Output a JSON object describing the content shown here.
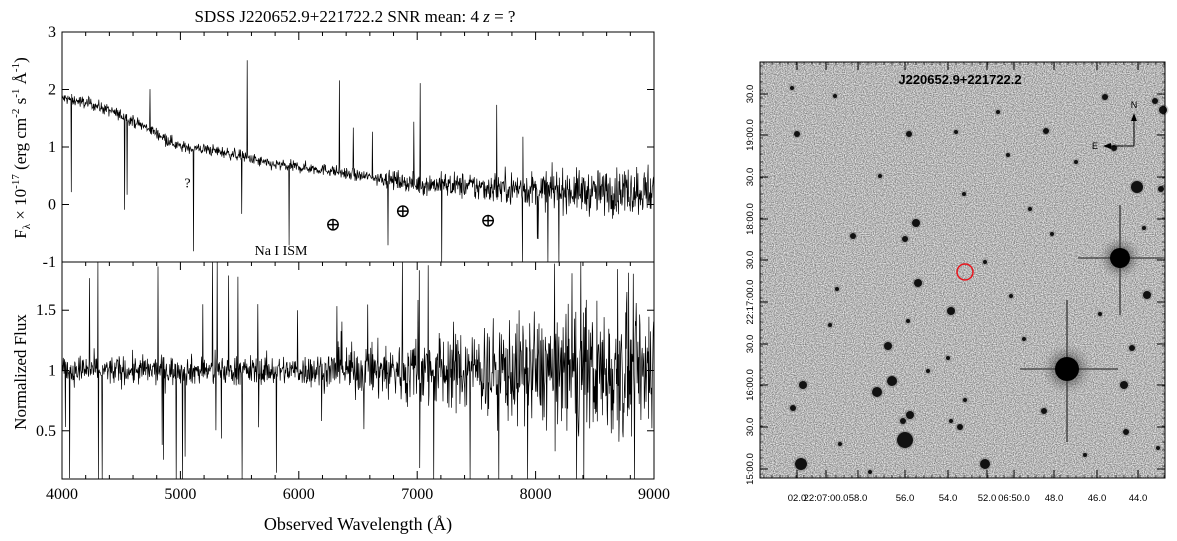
{
  "chart_data": [
    {
      "type": "line",
      "panel": "flux",
      "title": "SDSS J220652.9+221722.2 SNR mean:  4  z = ?",
      "title_parts": {
        "object": "SDSS J220652.9+221722.2 SNR mean:  4  ",
        "z": "z",
        "z_value": " = ?"
      },
      "xlabel": "",
      "ylabel": "Fλ × 10^-17 (erg cm^-2 s^-1 Å^-1)",
      "ylabel_parts": {
        "F": "F",
        "sub": "λ",
        "times": " × 10",
        "exp": "-17",
        "unit1": " (erg cm",
        "exp2": "-2",
        "unit2": " s",
        "exp3": "-1",
        "unit3": " Å",
        "exp4": "-1",
        "close": ")"
      },
      "xlim": [
        4000,
        9000
      ],
      "ylim": [
        -1,
        3
      ],
      "y_ticks": [
        "-1",
        "0",
        "1",
        "2",
        "3"
      ],
      "annotations": [
        {
          "text": "?",
          "x": 5060,
          "y": 0.3
        },
        {
          "text": "Na I ISM",
          "x": 5850,
          "y": -0.88
        },
        {
          "text": "⊕",
          "x": 6290,
          "y": -0.45
        },
        {
          "text": "⊕",
          "x": 6880,
          "y": -0.22
        },
        {
          "text": "⊕",
          "x": 7600,
          "y": -0.38
        }
      ],
      "x": [
        4000,
        4250,
        4500,
        4750,
        5000,
        5250,
        5500,
        5750,
        6000,
        6250,
        6500,
        6750,
        7000,
        7250,
        7500,
        7750,
        8000,
        8250,
        8500,
        8750,
        9000
      ],
      "values": [
        1.85,
        1.75,
        1.55,
        1.3,
        1.0,
        0.95,
        0.85,
        0.7,
        0.65,
        0.6,
        0.5,
        0.45,
        0.35,
        0.35,
        0.3,
        0.3,
        0.25,
        0.25,
        0.2,
        0.25,
        0.25
      ]
    },
    {
      "type": "line",
      "panel": "normalized",
      "xlabel": "Observed Wavelength (Å)",
      "ylabel": "Normalized Flux",
      "xlim": [
        4000,
        9000
      ],
      "ylim": [
        0.1,
        1.9
      ],
      "x_ticks": [
        "4000",
        "5000",
        "6000",
        "7000",
        "8000",
        "9000"
      ],
      "y_ticks": [
        "0.5",
        "1",
        "1.5"
      ],
      "x": [
        4000,
        4500,
        5000,
        5500,
        6000,
        6500,
        7000,
        7500,
        8000,
        8500,
        9000
      ],
      "values": [
        1.0,
        1.0,
        1.0,
        1.0,
        1.0,
        1.0,
        1.0,
        1.0,
        1.0,
        1.0,
        1.0
      ]
    }
  ],
  "finder": {
    "object_label": "J220652.9+221722.2",
    "compass": {
      "north": "N",
      "east": "E"
    },
    "ra_ticks": [
      "02.0",
      "22:07:00.0",
      "58.0",
      "56.0",
      "54.0",
      "52.0",
      "06:50.0",
      "48.0",
      "46.0",
      "44.0"
    ],
    "dec_ticks": [
      "15:00.0",
      "30.0",
      "16:00.0",
      "30.0",
      "22:17:00.0",
      "30.0",
      "18:00.0",
      "30.0",
      "19:00.0",
      "30.0"
    ],
    "target_marker_color": "#e8141c"
  }
}
